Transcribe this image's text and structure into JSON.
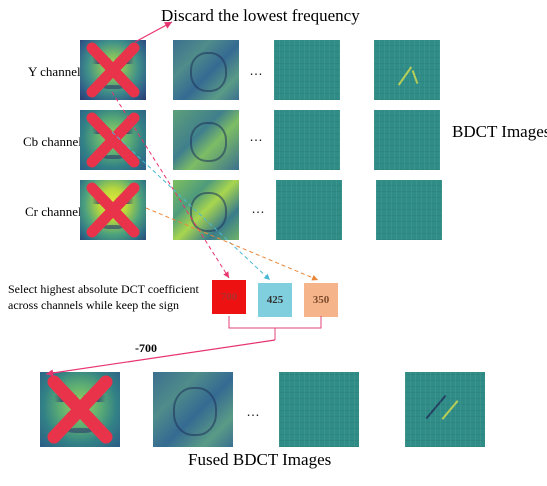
{
  "titles": {
    "top": "Discard the lowest frequency",
    "bottom": "Fused BDCT Images",
    "side": "BDCT Images"
  },
  "channels": [
    "Y channel",
    "Cb channel",
    "Cr channel"
  ],
  "selection_text": "Select highest absolute DCT coefficient across channels while keep the sign",
  "coefficients": {
    "red": "-700",
    "blue": "425",
    "orange": "350",
    "red_box_text": "700"
  },
  "fused_value": "-700",
  "ellipsis": "…",
  "colors": {
    "arrow_red": "#e8346e",
    "arrow_blue": "#4bb8d6",
    "arrow_orange": "#e8873a",
    "cross_red": "#e8334a",
    "bracket": "#e0457a"
  }
}
